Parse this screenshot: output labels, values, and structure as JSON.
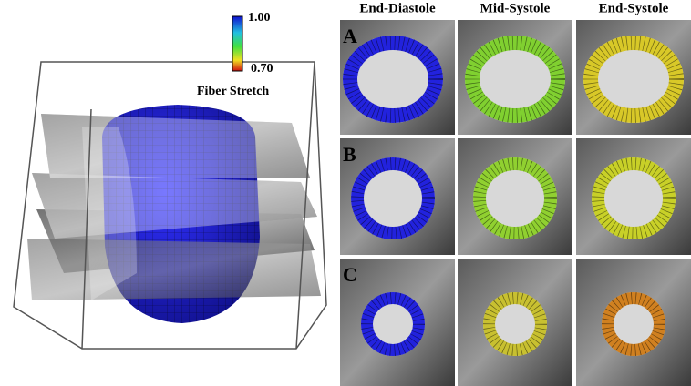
{
  "colorbar": {
    "max_label": "1.00",
    "min_label": "0.70",
    "title": "Fiber Stretch"
  },
  "columns": [
    "End-Diastole",
    "Mid-Systole",
    "End-Systole"
  ],
  "rows": [
    "A",
    "B",
    "C"
  ]
}
